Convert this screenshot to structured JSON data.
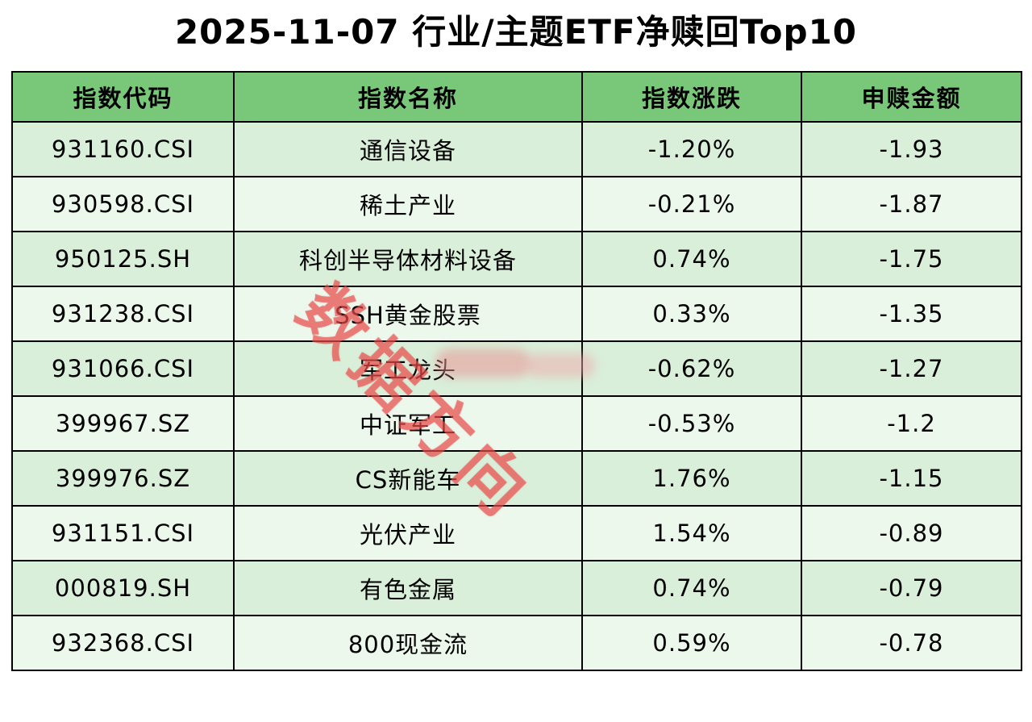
{
  "title": "2025-11-07 行业/主题ETF净赎回Top10",
  "watermark": "数据方向",
  "colors": {
    "header_bg": "#79c879",
    "row_odd": "#d9efd9",
    "row_even": "#ecf8ec",
    "watermark": "rgba(233,72,72,0.62)"
  },
  "table": {
    "headers": [
      "指数代码",
      "指数名称",
      "指数涨跌",
      "申赎金额"
    ],
    "rows": [
      [
        "931160.CSI",
        "通信设备",
        "-1.20%",
        "-1.93"
      ],
      [
        "930598.CSI",
        "稀土产业",
        "-0.21%",
        "-1.87"
      ],
      [
        "950125.SH",
        "科创半导体材料设备",
        "0.74%",
        "-1.75"
      ],
      [
        "931238.CSI",
        "SSH黄金股票",
        "0.33%",
        "-1.35"
      ],
      [
        "931066.CSI",
        "军工龙头",
        "-0.62%",
        "-1.27"
      ],
      [
        "399967.SZ",
        "中证军工",
        "-0.53%",
        "-1.2"
      ],
      [
        "399976.SZ",
        "CS新能车",
        "1.76%",
        "-1.15"
      ],
      [
        "931151.CSI",
        "光伏产业",
        "1.54%",
        "-0.89"
      ],
      [
        "000819.SH",
        "有色金属",
        "0.74%",
        "-0.79"
      ],
      [
        "932368.CSI",
        "800现金流",
        "0.59%",
        "-0.78"
      ]
    ]
  },
  "chart_data": {
    "type": "table",
    "title": "2025-11-07 行业/主题ETF净赎回Top10",
    "columns": [
      "指数代码",
      "指数名称",
      "指数涨跌",
      "申赎金额"
    ],
    "rows": [
      {
        "指数代码": "931160.CSI",
        "指数名称": "通信设备",
        "指数涨跌": "-1.20%",
        "申赎金额": -1.93
      },
      {
        "指数代码": "930598.CSI",
        "指数名称": "稀土产业",
        "指数涨跌": "-0.21%",
        "申赎金额": -1.87
      },
      {
        "指数代码": "950125.SH",
        "指数名称": "科创半导体材料设备",
        "指数涨跌": "0.74%",
        "申赎金额": -1.75
      },
      {
        "指数代码": "931238.CSI",
        "指数名称": "SSH黄金股票",
        "指数涨跌": "0.33%",
        "申赎金额": -1.35
      },
      {
        "指数代码": "931066.CSI",
        "指数名称": "军工龙头",
        "指数涨跌": "-0.62%",
        "申赎金额": -1.27
      },
      {
        "指数代码": "399967.SZ",
        "指数名称": "中证军工",
        "指数涨跌": "-0.53%",
        "申赎金额": -1.2
      },
      {
        "指数代码": "399976.SZ",
        "指数名称": "CS新能车",
        "指数涨跌": "1.76%",
        "申赎金额": -1.15
      },
      {
        "指数代码": "931151.CSI",
        "指数名称": "光伏产业",
        "指数涨跌": "1.54%",
        "申赎金额": -0.89
      },
      {
        "指数代码": "000819.SH",
        "指数名称": "有色金属",
        "指数涨跌": "0.74%",
        "申赎金额": -0.79
      },
      {
        "指数代码": "932368.CSI",
        "指数名称": "800现金流",
        "指数涨跌": "0.59%",
        "申赎金额": -0.78
      }
    ]
  }
}
